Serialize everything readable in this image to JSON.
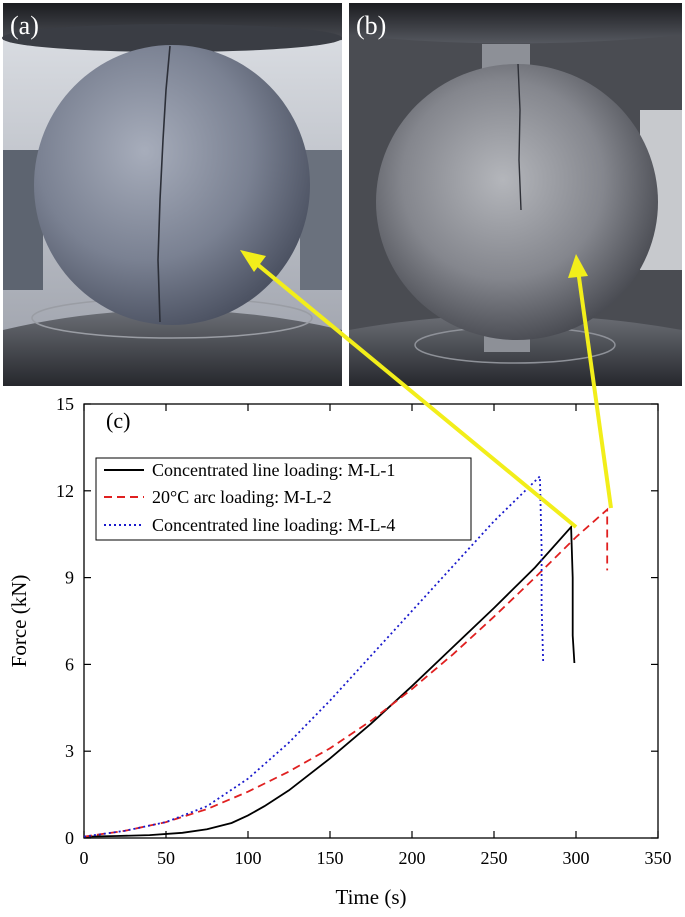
{
  "panels": [
    {
      "label": "(a)"
    },
    {
      "label": "(b)"
    }
  ],
  "colors": {
    "arrow": "#f2ee1a",
    "specimen_a": "#7d8494",
    "specimen_b": "#8a8c92",
    "machine_dark": "#2a2c31",
    "series": [
      "#000000",
      "#e02020",
      "#1a1acc"
    ]
  },
  "chart_data": {
    "type": "line",
    "panel_label": "(c)",
    "xlabel": "Time (s)",
    "ylabel": "Force (kN)",
    "xlim": [
      0,
      350
    ],
    "ylim": [
      0,
      15
    ],
    "xticks": [
      0,
      50,
      100,
      150,
      200,
      250,
      300,
      350
    ],
    "yticks": [
      0,
      3,
      6,
      9,
      12,
      15
    ],
    "legend_position": "top-left",
    "grid": false,
    "series": [
      {
        "name": "Concentrated line loading: M-L-1",
        "style": "solid",
        "points": [
          [
            0,
            0.05
          ],
          [
            20,
            0.07
          ],
          [
            40,
            0.1
          ],
          [
            60,
            0.18
          ],
          [
            75,
            0.3
          ],
          [
            90,
            0.52
          ],
          [
            100,
            0.78
          ],
          [
            110,
            1.1
          ],
          [
            125,
            1.65
          ],
          [
            150,
            2.75
          ],
          [
            175,
            3.95
          ],
          [
            200,
            5.25
          ],
          [
            225,
            6.6
          ],
          [
            250,
            7.95
          ],
          [
            275,
            9.35
          ],
          [
            297,
            10.75
          ],
          [
            298,
            9.0
          ],
          [
            298,
            7.0
          ],
          [
            299,
            6.05
          ]
        ]
      },
      {
        "name": "20°C arc loading: M-L-2",
        "style": "dashed",
        "points": [
          [
            0,
            0.05
          ],
          [
            25,
            0.25
          ],
          [
            50,
            0.55
          ],
          [
            75,
            1.0
          ],
          [
            100,
            1.6
          ],
          [
            125,
            2.3
          ],
          [
            150,
            3.1
          ],
          [
            175,
            4.05
          ],
          [
            200,
            5.15
          ],
          [
            225,
            6.35
          ],
          [
            250,
            7.65
          ],
          [
            275,
            9.0
          ],
          [
            300,
            10.4
          ],
          [
            319,
            11.35
          ],
          [
            319,
            10.3
          ],
          [
            319,
            9.25
          ]
        ]
      },
      {
        "name": "Concentrated line loading: M-L-4",
        "style": "dotted",
        "points": [
          [
            0,
            0.05
          ],
          [
            25,
            0.25
          ],
          [
            50,
            0.55
          ],
          [
            75,
            1.1
          ],
          [
            100,
            2.05
          ],
          [
            125,
            3.3
          ],
          [
            150,
            4.75
          ],
          [
            175,
            6.3
          ],
          [
            200,
            7.85
          ],
          [
            225,
            9.4
          ],
          [
            250,
            10.95
          ],
          [
            278,
            12.5
          ],
          [
            279,
            10.0
          ],
          [
            279,
            8.0
          ],
          [
            280,
            6.05
          ]
        ]
      }
    ]
  }
}
